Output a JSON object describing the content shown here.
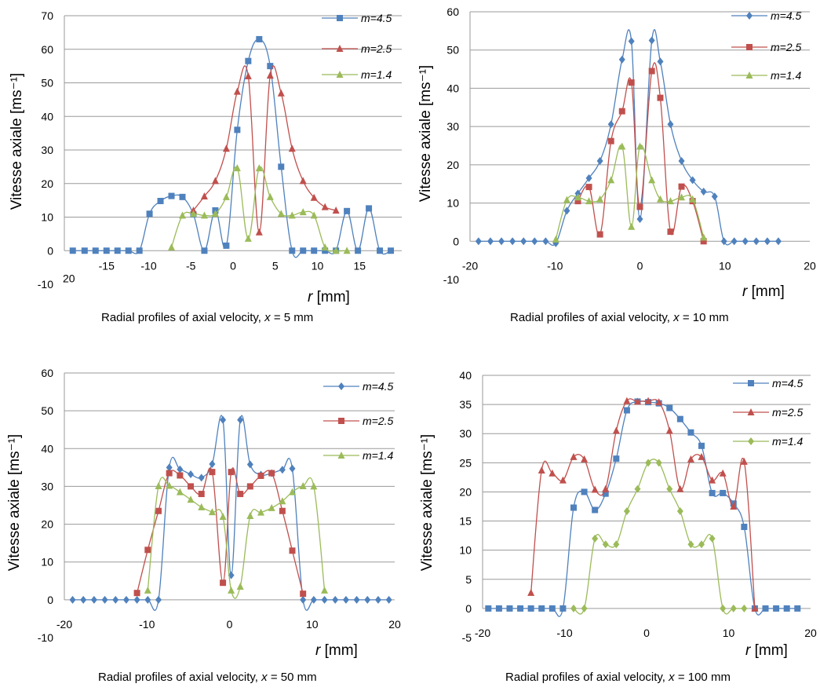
{
  "colors": {
    "blue": "#4f81bd",
    "red": "#c0504d",
    "green": "#9bbb59",
    "grid": "#9a9a9a"
  },
  "chart_data": [
    {
      "type": "line",
      "ylabel": "Vitesse axiale [ms⁻¹]",
      "xlabel_var": "r",
      "xlabel_unit": "[mm]",
      "caption_text": "Radial profiles of axial velocity, ",
      "caption_var": "x",
      "caption_eq": " = 5 mm",
      "xlim": [
        -20,
        20
      ],
      "ylim": [
        -10,
        70
      ],
      "yticks": [
        70,
        60,
        50,
        40,
        30,
        20,
        10,
        0,
        -10
      ],
      "xticks": [
        -15,
        -10,
        -5,
        0,
        5,
        10,
        15
      ],
      "xtick_labels": [
        "-15",
        "-10",
        "-5",
        "0",
        "5",
        "10",
        "15"
      ],
      "xaxis_left_label": "20",
      "legend_position": "top-right",
      "series": [
        {
          "name": "m=4.5",
          "color": "#4f81bd",
          "marker": "square",
          "x": [
            -19,
            -17.6,
            -16.3,
            -15,
            -13.7,
            -12.4,
            -11.1,
            -9.9,
            -8.6,
            -7.3,
            -6,
            -4.7,
            -3.4,
            -2.1,
            -0.8,
            0.5,
            1.8,
            3.1,
            4.4,
            5.7,
            7,
            8.3,
            9.6,
            10.9,
            12.2,
            13.5,
            14.8,
            16.1,
            17.4,
            18.7
          ],
          "y": [
            0,
            0,
            0,
            0,
            0,
            0,
            0,
            11,
            14.8,
            16.3,
            16,
            10.8,
            0,
            12,
            1.5,
            36,
            56.5,
            63,
            55,
            25,
            0,
            0,
            0,
            0,
            0,
            11.8,
            0,
            12.6,
            0,
            0
          ]
        },
        {
          "name": "m=2.5",
          "color": "#c0504d",
          "marker": "triangle",
          "x": [
            -4.7,
            -3.4,
            -2.1,
            -0.8,
            0.5,
            1.8,
            3.1,
            4.4,
            5.7,
            7,
            8.3,
            9.6,
            10.9,
            12.2
          ],
          "y": [
            12,
            16.2,
            20.8,
            30.4,
            47.4,
            52,
            5.5,
            52.2,
            46.9,
            30.4,
            20.8,
            15.8,
            13,
            12
          ]
        },
        {
          "name": "m=1.4",
          "color": "#9bbb59",
          "marker": "triangle",
          "x": [
            -7.3,
            -6,
            -4.7,
            -3.4,
            -2.1,
            -0.8,
            0.5,
            1.8,
            3.1,
            4.4,
            5.7,
            7,
            8.3,
            9.6,
            10.9,
            12.2,
            13.5
          ],
          "y": [
            1,
            10.5,
            11,
            10.5,
            11,
            16,
            24.6,
            3.6,
            24.6,
            16,
            11,
            10.5,
            11.5,
            10.5,
            1,
            0,
            0
          ]
        }
      ]
    },
    {
      "type": "line",
      "ylabel": "Vitesse axiale [ms⁻¹]",
      "xlabel_var": "r",
      "xlabel_unit": "[mm]",
      "caption_text": "Radial profiles of axial velocity, ",
      "caption_var": "x",
      "caption_eq": " = 10 mm",
      "xlim": [
        -20,
        20
      ],
      "ylim": [
        -10,
        60
      ],
      "yticks": [
        60,
        50,
        40,
        30,
        20,
        10,
        0,
        -10
      ],
      "ytick_labels": [
        "60",
        "50",
        "40",
        "30",
        "20",
        "10",
        "0",
        "-10"
      ],
      "xticks": [
        -20,
        -10,
        0,
        10,
        20
      ],
      "xtick_labels": [
        "-20",
        "-10",
        "0",
        "10",
        "20"
      ],
      "legend_position": "top-right",
      "series": [
        {
          "name": "m=4.5",
          "color": "#4f81bd",
          "marker": "diamond",
          "x": [
            -19,
            -17.6,
            -16.3,
            -15,
            -13.7,
            -12.4,
            -11.1,
            -9.9,
            -8.6,
            -7.3,
            -6,
            -4.7,
            -3.4,
            -2.1,
            -1,
            0,
            1.4,
            2.4,
            3.6,
            4.9,
            6.2,
            7.5,
            8.8,
            9.9,
            11.1,
            12.4,
            13.7,
            15,
            16.3
          ],
          "y": [
            0,
            0,
            0,
            0,
            0,
            0,
            0,
            -0.5,
            8,
            12.5,
            16.5,
            21,
            30.6,
            47.5,
            52.3,
            5.8,
            52.5,
            47,
            30.6,
            21,
            16,
            13,
            11.7,
            0,
            0,
            0,
            0,
            0,
            0
          ]
        },
        {
          "name": "m=2.5",
          "color": "#c0504d",
          "marker": "square",
          "x": [
            -7.3,
            -6,
            -4.7,
            -3.4,
            -2.1,
            -1,
            0,
            1.4,
            2.4,
            3.6,
            4.9,
            6.2,
            7.5
          ],
          "y": [
            10.5,
            14.2,
            1.8,
            26.2,
            34,
            41.5,
            9,
            44.5,
            37.5,
            2.5,
            14.3,
            10.5,
            0
          ]
        },
        {
          "name": "m=1.4",
          "color": "#9bbb59",
          "marker": "triangle",
          "x": [
            -9.9,
            -8.6,
            -7.3,
            -6,
            -4.7,
            -3.4,
            -2.1,
            -1,
            0,
            1.4,
            2.4,
            3.6,
            4.9,
            6.2,
            7.5
          ],
          "y": [
            0.5,
            10.8,
            11.5,
            10.5,
            11,
            16,
            24.8,
            3.8,
            24.8,
            16,
            11,
            10.5,
            11.5,
            11,
            1
          ]
        }
      ]
    },
    {
      "type": "line",
      "ylabel": "Vitesse axiale [ms⁻¹]",
      "xlabel_var": "r",
      "xlabel_unit": "[mm]",
      "caption_text": "Radial profiles of axial velocity, ",
      "caption_var": "x",
      "caption_eq": " = 50 mm",
      "xlim": [
        -20,
        20
      ],
      "ylim": [
        -10,
        60
      ],
      "yticks": [
        60,
        50,
        40,
        30,
        20,
        10,
        0,
        -10
      ],
      "ytick_labels": [
        "60",
        "50",
        "40",
        "30",
        "20",
        "10",
        "0",
        "-10"
      ],
      "xticks": [
        -20,
        -10,
        0,
        10,
        20
      ],
      "xtick_labels": [
        "-20",
        "-10",
        "0",
        "10",
        "20"
      ],
      "legend_position": "top-right",
      "series": [
        {
          "name": "m=4.5",
          "color": "#4f81bd",
          "marker": "diamond",
          "x": [
            -19,
            -17.7,
            -16.4,
            -15.1,
            -13.8,
            -12.5,
            -11.2,
            -9.9,
            -8.6,
            -7.3,
            -6,
            -4.7,
            -3.4,
            -2.1,
            -0.8,
            0.2,
            1.3,
            2.5,
            3.8,
            5.1,
            6.4,
            7.6,
            8.9,
            10.2,
            11.5,
            12.8,
            14.1,
            15.4,
            16.7,
            18,
            19.3
          ],
          "y": [
            0,
            0,
            0,
            0,
            0,
            0,
            0,
            0,
            0,
            35,
            34.5,
            33.2,
            32.3,
            35.9,
            47.6,
            6.5,
            47.6,
            35.8,
            33.1,
            33.5,
            34.4,
            34.7,
            0,
            0,
            0,
            0,
            0,
            0,
            0,
            0,
            0
          ]
        },
        {
          "name": "m=2.5",
          "color": "#c0504d",
          "marker": "square",
          "x": [
            -11.2,
            -9.9,
            -8.6,
            -7.3,
            -6,
            -4.7,
            -3.4,
            -2.1,
            -0.8,
            0.2,
            1.3,
            2.5,
            3.8,
            5.1,
            6.4,
            7.6,
            8.9
          ],
          "y": [
            1.8,
            13.2,
            23.5,
            33.5,
            32.9,
            30,
            28,
            33.8,
            4.5,
            33.8,
            28,
            30,
            32.8,
            33.5,
            23.5,
            13,
            1.6
          ]
        },
        {
          "name": "m=1.4",
          "color": "#9bbb59",
          "marker": "triangle",
          "x": [
            -9.9,
            -8.6,
            -7.3,
            -6,
            -4.7,
            -3.4,
            -2.1,
            -0.8,
            0.2,
            1.3,
            2.5,
            3.8,
            5.1,
            6.4,
            7.6,
            8.9,
            10.2,
            11.5
          ],
          "y": [
            2.5,
            30.1,
            30.2,
            28.5,
            26.5,
            24.5,
            23.2,
            22,
            2.5,
            3.5,
            22.2,
            23.1,
            24.3,
            26.1,
            28.5,
            30.1,
            30,
            2.5
          ]
        }
      ]
    },
    {
      "type": "line",
      "ylabel": "Vitesse axiale [ms⁻¹]",
      "xlabel_var": "r",
      "xlabel_unit": "[mm]",
      "caption_text": "Radial profiles of axial velocity, ",
      "caption_var": "x",
      "caption_eq": " = 100 mm",
      "xlim": [
        -20,
        20
      ],
      "ylim": [
        -5,
        40
      ],
      "yticks": [
        40,
        35,
        30,
        25,
        20,
        15,
        10,
        5,
        0,
        -5
      ],
      "ytick_labels": [
        "40",
        "35",
        "30",
        "25",
        "20",
        "15",
        "10",
        "5",
        "0",
        "-5"
      ],
      "xticks": [
        -20,
        -10,
        0,
        10,
        20
      ],
      "xtick_labels": [
        "-20",
        "-10",
        "0",
        "10",
        "20"
      ],
      "legend_position": "top-right",
      "series": [
        {
          "name": "m=4.5",
          "color": "#4f81bd",
          "marker": "square",
          "x": [
            -19.3,
            -18,
            -16.7,
            -15.4,
            -14.1,
            -12.8,
            -11.5,
            -10.2,
            -8.9,
            -7.6,
            -6.3,
            -5,
            -3.7,
            -2.4,
            -1.1,
            0.2,
            1.5,
            2.8,
            4.1,
            5.4,
            6.7,
            8,
            9.3,
            10.6,
            11.9,
            13.2,
            14.5,
            15.8,
            17.1,
            18.4
          ],
          "y": [
            0,
            0,
            0,
            0,
            0,
            0,
            0,
            0,
            17.3,
            20,
            16.9,
            19.7,
            25.7,
            34,
            35.5,
            35.4,
            35.2,
            34.4,
            32.5,
            30.2,
            27.9,
            19.8,
            19.8,
            18,
            14,
            0,
            0,
            0,
            0,
            0
          ]
        },
        {
          "name": "m=2.5",
          "color": "#c0504d",
          "marker": "triangle",
          "x": [
            -14.1,
            -12.8,
            -11.5,
            -10.2,
            -8.9,
            -7.6,
            -6.3,
            -5,
            -3.7,
            -2.4,
            -1.1,
            0.2,
            1.5,
            2.8,
            4.1,
            5.4,
            6.7,
            8,
            9.3,
            10.6,
            11.9,
            13.2
          ],
          "y": [
            2.7,
            23.7,
            23.2,
            22,
            26,
            25.6,
            20.4,
            20.5,
            30.5,
            35.6,
            35.5,
            35.6,
            35.4,
            30.5,
            20.5,
            25.6,
            26,
            22,
            23.2,
            17.5,
            25.2,
            0
          ]
        },
        {
          "name": "m=1.4",
          "color": "#9bbb59",
          "marker": "diamond",
          "x": [
            -8.9,
            -7.6,
            -6.3,
            -5,
            -3.7,
            -2.4,
            -1.1,
            0.2,
            1.5,
            2.8,
            4.1,
            5.4,
            6.7,
            8,
            9.3,
            10.6,
            11.9
          ],
          "y": [
            0,
            0,
            12,
            11,
            11,
            16.7,
            20.5,
            25,
            25,
            20.5,
            16.7,
            11,
            11,
            12,
            0,
            0,
            0
          ]
        }
      ]
    }
  ]
}
